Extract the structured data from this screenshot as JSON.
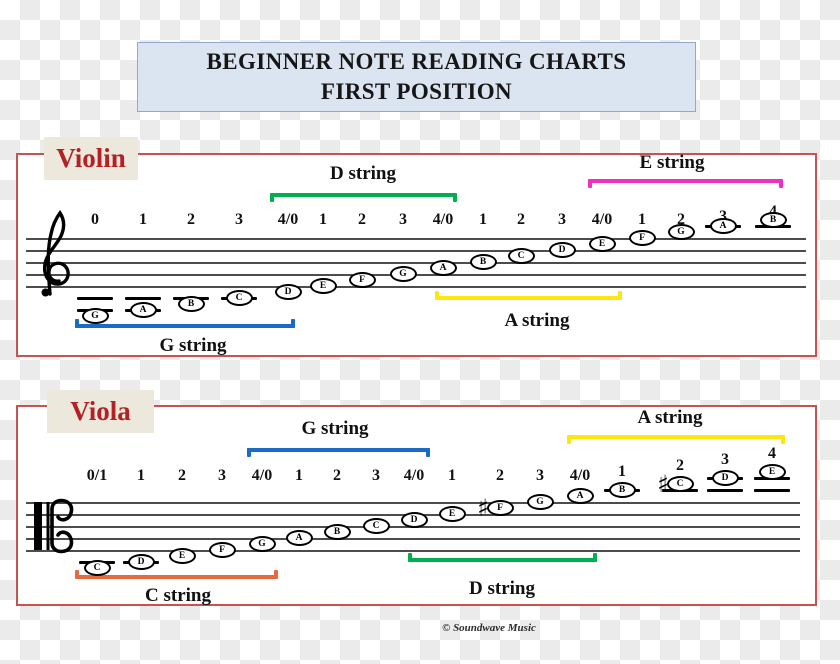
{
  "page": {
    "title_line1": "BEGINNER NOTE READING CHARTS",
    "title_line2": "FIRST POSITION",
    "copyright": "© Soundwave Music",
    "glyphs": {
      "sharp": "♯"
    },
    "colors": {
      "panel_border": "#c35452",
      "panel_title_text": "#b32025",
      "panel_title_bg": "#ece8dc",
      "title_box_bg": "#dbe4f1",
      "title_box_border": "#94a7c9",
      "checker_gray": "#ebebeb",
      "string_blue": "#1a6bc4",
      "string_green": "#00b050",
      "string_yellow": "#ffe60d",
      "string_magenta": "#ee2fc0",
      "string_orange": "#e66a3f"
    }
  },
  "panels": [
    {
      "id": "violin",
      "label": "Violin",
      "clef": "treble",
      "notes": [
        {
          "letter": "G",
          "finger": "0",
          "step": 0
        },
        {
          "letter": "A",
          "finger": "1",
          "step": 1
        },
        {
          "letter": "B",
          "finger": "2",
          "step": 2
        },
        {
          "letter": "C",
          "finger": "3",
          "step": 3
        },
        {
          "letter": "D",
          "finger": "4/0",
          "step": 4
        },
        {
          "letter": "E",
          "finger": "1",
          "step": 5
        },
        {
          "letter": "F",
          "finger": "2",
          "step": 6
        },
        {
          "letter": "G",
          "finger": "3",
          "step": 7
        },
        {
          "letter": "A",
          "finger": "4/0",
          "step": 8
        },
        {
          "letter": "B",
          "finger": "1",
          "step": 9
        },
        {
          "letter": "C",
          "finger": "2",
          "step": 10
        },
        {
          "letter": "D",
          "finger": "3",
          "step": 11
        },
        {
          "letter": "E",
          "finger": "4/0",
          "step": 12
        },
        {
          "letter": "F",
          "finger": "1",
          "step": 13
        },
        {
          "letter": "G",
          "finger": "2",
          "step": 14
        },
        {
          "letter": "A",
          "finger": "3",
          "step": 15
        },
        {
          "letter": "B",
          "finger": "4",
          "step": 16
        }
      ],
      "brackets": [
        {
          "label": "G string",
          "color": "#1a6bc4",
          "position": "below"
        },
        {
          "label": "D string",
          "color": "#00b050",
          "position": "above"
        },
        {
          "label": "A string",
          "color": "#ffe60d",
          "position": "below"
        },
        {
          "label": "E string",
          "color": "#ee2fc0",
          "position": "above"
        }
      ]
    },
    {
      "id": "viola",
      "label": "Viola",
      "clef": "alto",
      "notes": [
        {
          "letter": "C",
          "finger": "0/1",
          "step": 0
        },
        {
          "letter": "D",
          "finger": "1",
          "step": 1
        },
        {
          "letter": "E",
          "finger": "2",
          "step": 2
        },
        {
          "letter": "F",
          "finger": "3",
          "step": 3
        },
        {
          "letter": "G",
          "finger": "4/0",
          "step": 4
        },
        {
          "letter": "A",
          "finger": "1",
          "step": 5
        },
        {
          "letter": "B",
          "finger": "2",
          "step": 6
        },
        {
          "letter": "C",
          "finger": "3",
          "step": 7
        },
        {
          "letter": "D",
          "finger": "4/0",
          "step": 8
        },
        {
          "letter": "E",
          "finger": "1",
          "step": 9
        },
        {
          "letter": "F",
          "finger": "2",
          "step": 10,
          "sharp": true
        },
        {
          "letter": "G",
          "finger": "3",
          "step": 11
        },
        {
          "letter": "A",
          "finger": "4/0",
          "step": 12
        },
        {
          "letter": "B",
          "finger": "1",
          "step": 13
        },
        {
          "letter": "C",
          "finger": "2",
          "step": 14,
          "sharp": true
        },
        {
          "letter": "D",
          "finger": "3",
          "step": 15
        },
        {
          "letter": "E",
          "finger": "4",
          "step": 16
        }
      ],
      "brackets": [
        {
          "label": "C string",
          "color": "#e66a3f",
          "position": "below"
        },
        {
          "label": "G string",
          "color": "#1a6bc4",
          "position": "above"
        },
        {
          "label": "D string",
          "color": "#00b050",
          "position": "below"
        },
        {
          "label": "A string",
          "color": "#ffe60d",
          "position": "above"
        }
      ]
    }
  ]
}
